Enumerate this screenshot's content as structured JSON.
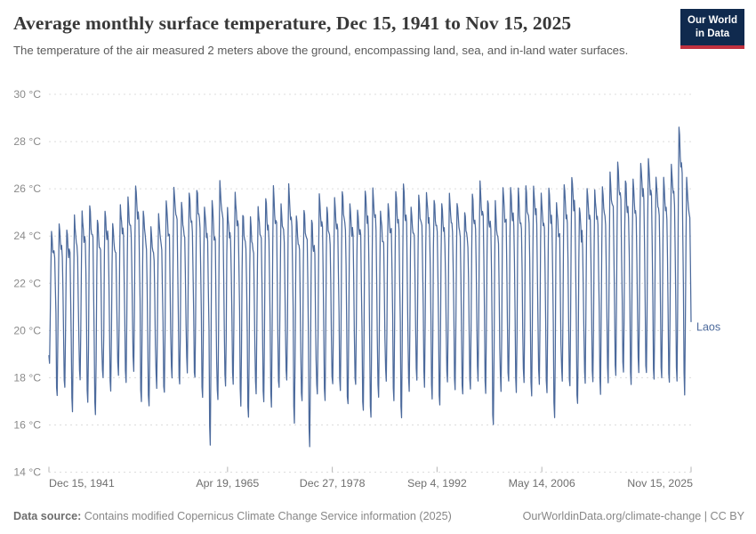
{
  "header": {
    "title": "Average monthly surface temperature, Dec 15, 1941 to Nov 15, 2025",
    "subtitle": "The temperature of the air measured 2 meters above the ground, encompassing land, sea, and in-land water surfaces.",
    "logo": {
      "line1": "Our World",
      "line2": "in Data",
      "bg_color": "#102a4e",
      "accent_color": "#c0313f"
    }
  },
  "footer": {
    "source_label": "Data source:",
    "source_text": " Contains modified Copernicus Climate Change Service information (2025)",
    "link": "OurWorldinData.org/climate-change | CC BY"
  },
  "chart_data": {
    "type": "line",
    "title": "Average monthly surface temperature",
    "unit": "°C",
    "frequency": "monthly",
    "start": {
      "year": 1941,
      "month": 12,
      "label": "Dec 15, 1941"
    },
    "end": {
      "year": 2025,
      "month": 11,
      "label": "Nov 15, 2025"
    },
    "ylim": [
      14,
      30
    ],
    "grid": "dashed-horizontal",
    "yticks": [
      {
        "value": 30,
        "label": "30 °C"
      },
      {
        "value": 28,
        "label": "28 °C"
      },
      {
        "value": 26,
        "label": "26 °C"
      },
      {
        "value": 24,
        "label": "24 °C"
      },
      {
        "value": 22,
        "label": "22 °C"
      },
      {
        "value": 20,
        "label": "20 °C"
      },
      {
        "value": 18,
        "label": "18 °C"
      },
      {
        "value": 16,
        "label": "16 °C"
      },
      {
        "value": 14,
        "label": "14 °C"
      }
    ],
    "xticks": [
      {
        "label": "Dec 15, 1941",
        "year": 1941,
        "month": 12,
        "day": 15,
        "align": "start"
      },
      {
        "label": "Apr 19, 1965",
        "year": 1965,
        "month": 4,
        "day": 19,
        "align": "middle"
      },
      {
        "label": "Dec 27, 1978",
        "year": 1978,
        "month": 12,
        "day": 27,
        "align": "middle"
      },
      {
        "label": "Sep 4, 1992",
        "year": 1992,
        "month": 9,
        "day": 4,
        "align": "middle"
      },
      {
        "label": "May 14, 2006",
        "year": 2006,
        "month": 5,
        "day": 14,
        "align": "middle"
      },
      {
        "label": "Nov 15, 2025",
        "year": 2025,
        "month": 11,
        "day": 15,
        "align": "end"
      }
    ],
    "series": [
      {
        "name": "Laos",
        "color": "#4C6A9C"
      }
    ],
    "seasonal_shape_jan_to_dec": [
      0,
      0.3,
      0.72,
      1,
      0.96,
      0.89,
      0.85,
      0.86,
      0.82,
      0.6,
      0.35,
      0.06
    ],
    "annual_envelope": {
      "first_year": 1942,
      "trough_jan": [
        18.6,
        17.2,
        17.5,
        16.6,
        17.9,
        17.0,
        16.4,
        18.0,
        17.4,
        18.2,
        17.8,
        18.4,
        17.1,
        16.8,
        17.6,
        17.3,
        18.1,
        17.7,
        18.3,
        17.9,
        17.2,
        15.2,
        17.0,
        17.6,
        17.8,
        16.9,
        16.2,
        17.4,
        17.1,
        16.7,
        17.5,
        17.9,
        16.1,
        16.9,
        15.1,
        17.3,
        17.0,
        17.7,
        17.4,
        16.8,
        17.6,
        16.5,
        16.3,
        17.2,
        17.8,
        17.0,
        16.2,
        17.5,
        18.0,
        17.7,
        17.1,
        16.9,
        17.8,
        17.4,
        17.2,
        17.6,
        17.9,
        17.3,
        15.9,
        17.5,
        17.8,
        17.4,
        17.9,
        17.2,
        17.7,
        17.5,
        16.4,
        17.8,
        17.6,
        16.8,
        17.9,
        17.7,
        17.3,
        17.8,
        18.0,
        18.2,
        17.6,
        18.3,
        18.1,
        17.9,
        18.0,
        17.8,
        17.9,
        17.4
      ],
      "peak_apr": [
        24.1,
        24.6,
        24.3,
        24.8,
        25.0,
        25.3,
        24.7,
        25.1,
        24.5,
        25.2,
        25.6,
        26.1,
        25.0,
        24.4,
        24.9,
        25.4,
        26.0,
        25.3,
        25.7,
        26.0,
        25.2,
        25.6,
        26.3,
        25.1,
        25.8,
        25.0,
        24.8,
        25.3,
        25.6,
        26.1,
        25.4,
        26.1,
        24.9,
        25.2,
        24.8,
        25.9,
        25.3,
        25.7,
        25.9,
        25.5,
        25.2,
        26.0,
        26.1,
        25.1,
        25.5,
        26.0,
        26.2,
        25.3,
        25.8,
        25.9,
        25.6,
        25.4,
        25.8,
        25.5,
        25.1,
        25.7,
        26.3,
        25.6,
        25.4,
        26.0,
        26.1,
        25.9,
        26.0,
        26.2,
        25.8,
        26.0,
        25.5,
        26.1,
        26.6,
        25.2,
        26.0,
        25.9,
        26.2,
        26.6,
        27.0,
        26.4,
        26.3,
        27.1,
        27.2,
        26.5,
        26.4,
        27.0,
        28.6,
        26.4
      ]
    },
    "jitter_amplitude": 0.45,
    "random_seed": 11,
    "extremes": {
      "max": {
        "value": 28.6,
        "date": "Apr 2024"
      },
      "min": {
        "value": 15.1,
        "date": "Jan 1976"
      },
      "second_min": {
        "value": 15.2,
        "date": "Jan 1963"
      },
      "first": {
        "value": 18.9,
        "date": "Dec 1941"
      },
      "last": {
        "value": 20.7,
        "date": "Nov 2025"
      }
    },
    "colors": {
      "grid": "#dcdcdc",
      "tick": "#b5b5b5",
      "y_label": "#8a8a8a",
      "x_label": "#6f6f6f"
    }
  }
}
